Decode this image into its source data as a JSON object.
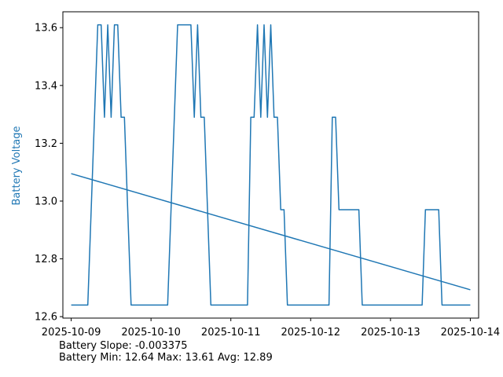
{
  "chart_data": {
    "type": "line",
    "ylabel": "Battery Voltage",
    "ylim": [
      12.595,
      13.655
    ],
    "xlim": [
      "2025-10-08 21:30",
      "2025-10-14 02:30"
    ],
    "x_ticks": [
      "2025-10-09",
      "2025-10-10",
      "2025-10-11",
      "2025-10-12",
      "2025-10-13",
      "2025-10-14"
    ],
    "y_ticks": [
      12.6,
      12.8,
      13.0,
      13.2,
      13.4,
      13.6
    ],
    "y_tick_labels": [
      "12.6",
      "12.8",
      "13.0",
      "13.2",
      "13.4",
      "13.6"
    ],
    "grid": false,
    "colors": {
      "series": "#1f77b4",
      "ylabel": "#1f77b4"
    },
    "series": [
      {
        "points": [
          [
            "2025-10-09 00:00",
            12.64
          ],
          [
            "2025-10-09 05:00",
            12.64
          ],
          [
            "2025-10-09 08:00",
            13.61
          ],
          [
            "2025-10-09 09:00",
            13.61
          ],
          [
            "2025-10-09 10:00",
            13.29
          ],
          [
            "2025-10-09 11:00",
            13.61
          ],
          [
            "2025-10-09 12:00",
            13.29
          ],
          [
            "2025-10-09 13:00",
            13.61
          ],
          [
            "2025-10-09 14:00",
            13.61
          ],
          [
            "2025-10-09 15:00",
            13.29
          ],
          [
            "2025-10-09 16:00",
            13.29
          ],
          [
            "2025-10-09 18:00",
            12.64
          ],
          [
            "2025-10-10 05:00",
            12.64
          ],
          [
            "2025-10-10 08:00",
            13.61
          ],
          [
            "2025-10-10 12:00",
            13.61
          ],
          [
            "2025-10-10 13:00",
            13.29
          ],
          [
            "2025-10-10 14:00",
            13.61
          ],
          [
            "2025-10-10 15:00",
            13.29
          ],
          [
            "2025-10-10 16:00",
            13.29
          ],
          [
            "2025-10-10 18:00",
            12.64
          ],
          [
            "2025-10-11 05:00",
            12.64
          ],
          [
            "2025-10-11 06:00",
            13.29
          ],
          [
            "2025-10-11 07:00",
            13.29
          ],
          [
            "2025-10-11 08:00",
            13.61
          ],
          [
            "2025-10-11 09:00",
            13.29
          ],
          [
            "2025-10-11 10:00",
            13.61
          ],
          [
            "2025-10-11 11:00",
            13.29
          ],
          [
            "2025-10-11 12:00",
            13.61
          ],
          [
            "2025-10-11 13:00",
            13.29
          ],
          [
            "2025-10-11 14:00",
            13.29
          ],
          [
            "2025-10-11 15:00",
            12.97
          ],
          [
            "2025-10-11 16:00",
            12.97
          ],
          [
            "2025-10-11 17:00",
            12.64
          ],
          [
            "2025-10-12 05:30",
            12.64
          ],
          [
            "2025-10-12 06:30",
            13.29
          ],
          [
            "2025-10-12 07:30",
            13.29
          ],
          [
            "2025-10-12 08:30",
            12.97
          ],
          [
            "2025-10-12 14:30",
            12.97
          ],
          [
            "2025-10-12 15:30",
            12.64
          ],
          [
            "2025-10-13 09:30",
            12.64
          ],
          [
            "2025-10-13 10:30",
            12.97
          ],
          [
            "2025-10-13 14:30",
            12.97
          ],
          [
            "2025-10-13 15:30",
            12.64
          ],
          [
            "2025-10-14 00:00",
            12.64
          ]
        ]
      }
    ],
    "trend": {
      "start": [
        "2025-10-09 00:00",
        13.095
      ],
      "end": [
        "2025-10-14 00:00",
        12.693
      ]
    }
  },
  "stats": {
    "slope_line": "Battery Slope: -0.003375",
    "summary_line": "Battery Min: 12.64 Max: 13.61 Avg: 12.89"
  }
}
